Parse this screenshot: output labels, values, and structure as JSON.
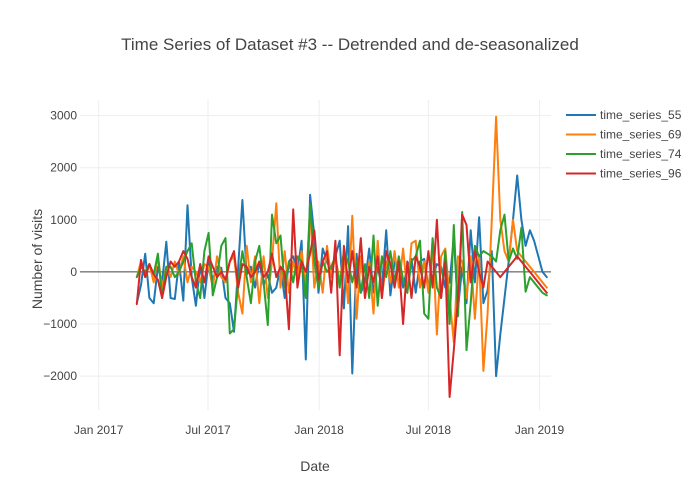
{
  "chart_data": {
    "type": "line",
    "title": "Time Series of Dataset #3 -- Detrended and de-seasonalized",
    "xlabel": "Date",
    "ylabel": "Number of visits",
    "xlim": [
      "2016-12-01",
      "2019-01-20"
    ],
    "ylim": [
      -2650,
      3300
    ],
    "x_tick_labels": [
      "Jan 2017",
      "Jul 2017",
      "Jan 2018",
      "Jul 2018",
      "Jan 2019"
    ],
    "x_tick_dates": [
      "2017-01-01",
      "2017-07-01",
      "2018-01-01",
      "2018-07-01",
      "2019-01-01"
    ],
    "y_ticks": [
      -2000,
      -1000,
      0,
      1000,
      2000,
      3000
    ],
    "y_tick_labels": [
      "−2000",
      "−1000",
      "0",
      "1000",
      "2000",
      "3000"
    ],
    "legend_position": "top-right",
    "grid": true,
    "x": [
      "2017-03-05",
      "2017-03-12",
      "2017-03-19",
      "2017-03-26",
      "2017-04-02",
      "2017-04-09",
      "2017-04-16",
      "2017-04-23",
      "2017-04-30",
      "2017-05-07",
      "2017-05-14",
      "2017-05-21",
      "2017-05-28",
      "2017-06-04",
      "2017-06-11",
      "2017-06-18",
      "2017-06-25",
      "2017-07-02",
      "2017-07-09",
      "2017-07-16",
      "2017-07-23",
      "2017-07-30",
      "2017-08-06",
      "2017-08-13",
      "2017-08-20",
      "2017-08-27",
      "2017-09-03",
      "2017-09-10",
      "2017-09-17",
      "2017-09-24",
      "2017-10-01",
      "2017-10-08",
      "2017-10-15",
      "2017-10-22",
      "2017-10-29",
      "2017-11-05",
      "2017-11-12",
      "2017-11-19",
      "2017-11-26",
      "2017-12-03",
      "2017-12-10",
      "2017-12-17",
      "2017-12-24",
      "2017-12-31",
      "2018-01-07",
      "2018-01-14",
      "2018-01-21",
      "2018-01-28",
      "2018-02-04",
      "2018-02-11",
      "2018-02-18",
      "2018-02-25",
      "2018-03-04",
      "2018-03-11",
      "2018-03-18",
      "2018-03-25",
      "2018-04-01",
      "2018-04-08",
      "2018-04-15",
      "2018-04-22",
      "2018-04-29",
      "2018-05-06",
      "2018-05-13",
      "2018-05-20",
      "2018-05-27",
      "2018-06-03",
      "2018-06-10",
      "2018-06-17",
      "2018-06-24",
      "2018-07-01",
      "2018-07-08",
      "2018-07-15",
      "2018-07-22",
      "2018-07-29",
      "2018-08-05",
      "2018-08-12",
      "2018-08-19",
      "2018-08-26",
      "2018-09-02",
      "2018-09-09",
      "2018-09-16",
      "2018-09-23",
      "2018-09-30",
      "2018-10-07",
      "2018-10-14",
      "2018-10-21",
      "2018-10-28",
      "2018-11-04",
      "2018-11-11",
      "2018-11-18",
      "2018-11-25",
      "2018-12-02",
      "2018-12-09",
      "2018-12-16",
      "2018-12-23",
      "2018-12-30",
      "2019-01-06",
      "2019-01-13"
    ],
    "series": [
      {
        "name": "time_series_55",
        "color": "#1f77b4",
        "values": [
          -600,
          -250,
          350,
          -500,
          -600,
          100,
          -200,
          580,
          -500,
          -520,
          200,
          -550,
          1280,
          -100,
          -650,
          150,
          -500,
          200,
          -150,
          100,
          80,
          -500,
          -600,
          -1150,
          100,
          1380,
          -50,
          100,
          -300,
          200,
          -250,
          -50,
          -400,
          -300,
          100,
          -500,
          200,
          300,
          0,
          600,
          -1680,
          1480,
          700,
          -400,
          450,
          200,
          0,
          300,
          600,
          -700,
          880,
          -1950,
          350,
          -400,
          -200,
          450,
          -400,
          100,
          -300,
          800,
          -450,
          200,
          100,
          -300,
          100,
          250,
          -400,
          200,
          250,
          -300,
          -100,
          150,
          100,
          -300,
          -200,
          650,
          -700,
          100,
          -600,
          800,
          -200,
          1050,
          -600,
          -350,
          400,
          -2000,
          -1200,
          -500,
          200,
          1000,
          1850,
          1000,
          500,
          800,
          600,
          300,
          0,
          -100
        ]
      },
      {
        "name": "time_series_69",
        "color": "#ff7f0e",
        "values": [
          -100,
          200,
          -100,
          150,
          -200,
          300,
          -300,
          100,
          -100,
          200,
          -50,
          300,
          -200,
          100,
          0,
          -200,
          150,
          100,
          -300,
          300,
          -100,
          -200,
          200,
          300,
          -400,
          -800,
          500,
          -200,
          300,
          -600,
          300,
          -500,
          200,
          1320,
          -300,
          400,
          -400,
          200,
          -100,
          400,
          -300,
          1200,
          -300,
          200,
          -400,
          500,
          -100,
          300,
          -200,
          400,
          -600,
          1080,
          -900,
          300,
          -500,
          200,
          -800,
          600,
          -500,
          200,
          -200,
          400,
          -300,
          450,
          -400,
          550,
          600,
          -300,
          200,
          -400,
          600,
          -1200,
          300,
          450,
          -500,
          -1350,
          300,
          200,
          -500,
          300,
          -900,
          300,
          -1900,
          -800,
          1000,
          2980,
          1000,
          400,
          200,
          1000,
          400,
          300,
          200,
          100,
          0,
          -100,
          -200,
          -300
        ]
      },
      {
        "name": "time_series_74",
        "color": "#2ca02c",
        "values": [
          -100,
          100,
          0,
          150,
          -50,
          350,
          -500,
          100,
          100,
          -100,
          0,
          200,
          400,
          550,
          -200,
          -500,
          400,
          750,
          -450,
          -100,
          500,
          650,
          -1180,
          -1100,
          -200,
          400,
          -100,
          -600,
          200,
          500,
          -200,
          -1020,
          1100,
          550,
          700,
          -300,
          200,
          -200,
          300,
          200,
          -500,
          1300,
          200,
          -300,
          200,
          0,
          100,
          300,
          -300,
          400,
          200,
          -200,
          200,
          -400,
          150,
          -500,
          700,
          -650,
          300,
          -100,
          400,
          -200,
          300,
          -150,
          -400,
          200,
          300,
          600,
          -800,
          -900,
          650,
          -300,
          -500,
          400,
          -1000,
          900,
          -850,
          1150,
          -1500,
          -600,
          500,
          300,
          400,
          350,
          300,
          200,
          800,
          1100,
          200,
          450,
          250,
          850,
          -380,
          -100,
          -200,
          -300,
          -400,
          -450
        ]
      },
      {
        "name": "time_series_96",
        "color": "#d62728",
        "values": [
          -620,
          230,
          -100,
          150,
          -50,
          -150,
          -500,
          -100,
          200,
          100,
          200,
          400,
          250,
          -100,
          -300,
          150,
          -200,
          300,
          100,
          -100,
          0,
          -150,
          200,
          400,
          -300,
          150,
          100,
          -100,
          0,
          200,
          -100,
          0,
          350,
          -100,
          100,
          0,
          -1100,
          1200,
          -300,
          200,
          0,
          350,
          800,
          -150,
          200,
          400,
          -400,
          600,
          -1600,
          500,
          -200,
          400,
          -300,
          650,
          -500,
          100,
          -200,
          300,
          -500,
          400,
          150,
          -300,
          200,
          -1000,
          200,
          -500,
          300,
          100,
          -300,
          400,
          -300,
          1000,
          -500,
          200,
          -2400,
          -1500,
          -500,
          1100,
          900,
          -200,
          400,
          0,
          -300,
          200,
          100,
          0,
          -100,
          0,
          100,
          200,
          300,
          200,
          100,
          0,
          -100,
          -200,
          -300,
          -400
        ]
      }
    ]
  }
}
